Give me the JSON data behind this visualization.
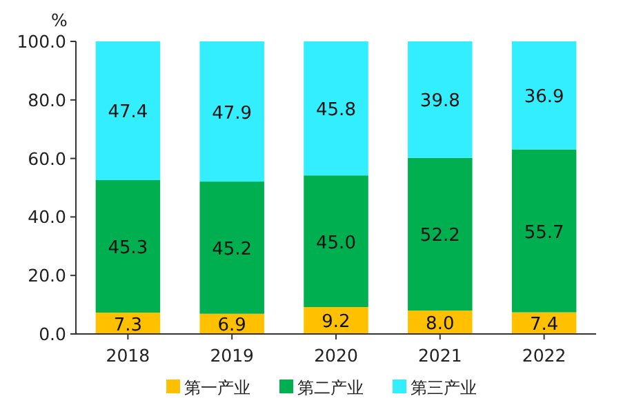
{
  "chart_data": {
    "type": "bar",
    "stacked": true,
    "ylabel": "%",
    "categories": [
      "2018",
      "2019",
      "2020",
      "2021",
      "2022"
    ],
    "series": [
      {
        "name": "第一产业",
        "color": "#ffc000",
        "values": [
          7.3,
          6.9,
          9.2,
          8.0,
          7.4
        ],
        "value_labels": [
          "7.3",
          "6.9",
          "9.2",
          "8.0",
          "7.4"
        ]
      },
      {
        "name": "第二产业",
        "color": "#00b050",
        "values": [
          45.3,
          45.2,
          45.0,
          52.2,
          55.7
        ],
        "value_labels": [
          "45.3",
          "45.2",
          "45.0",
          "52.2",
          "55.7"
        ]
      },
      {
        "name": "第三产业",
        "color": "#33eeff",
        "values": [
          47.4,
          47.9,
          45.8,
          39.8,
          36.9
        ],
        "value_labels": [
          "47.4",
          "47.9",
          "45.8",
          "39.8",
          "36.9"
        ]
      }
    ],
    "ylim": [
      0,
      100
    ],
    "yticks": [
      {
        "value": 0,
        "label": "0.0"
      },
      {
        "value": 20,
        "label": "20.0"
      },
      {
        "value": 40,
        "label": "40.0"
      },
      {
        "value": 60,
        "label": "60.0"
      },
      {
        "value": 80,
        "label": "80.0"
      },
      {
        "value": 100,
        "label": "100.0"
      }
    ],
    "legend": "bottom"
  }
}
